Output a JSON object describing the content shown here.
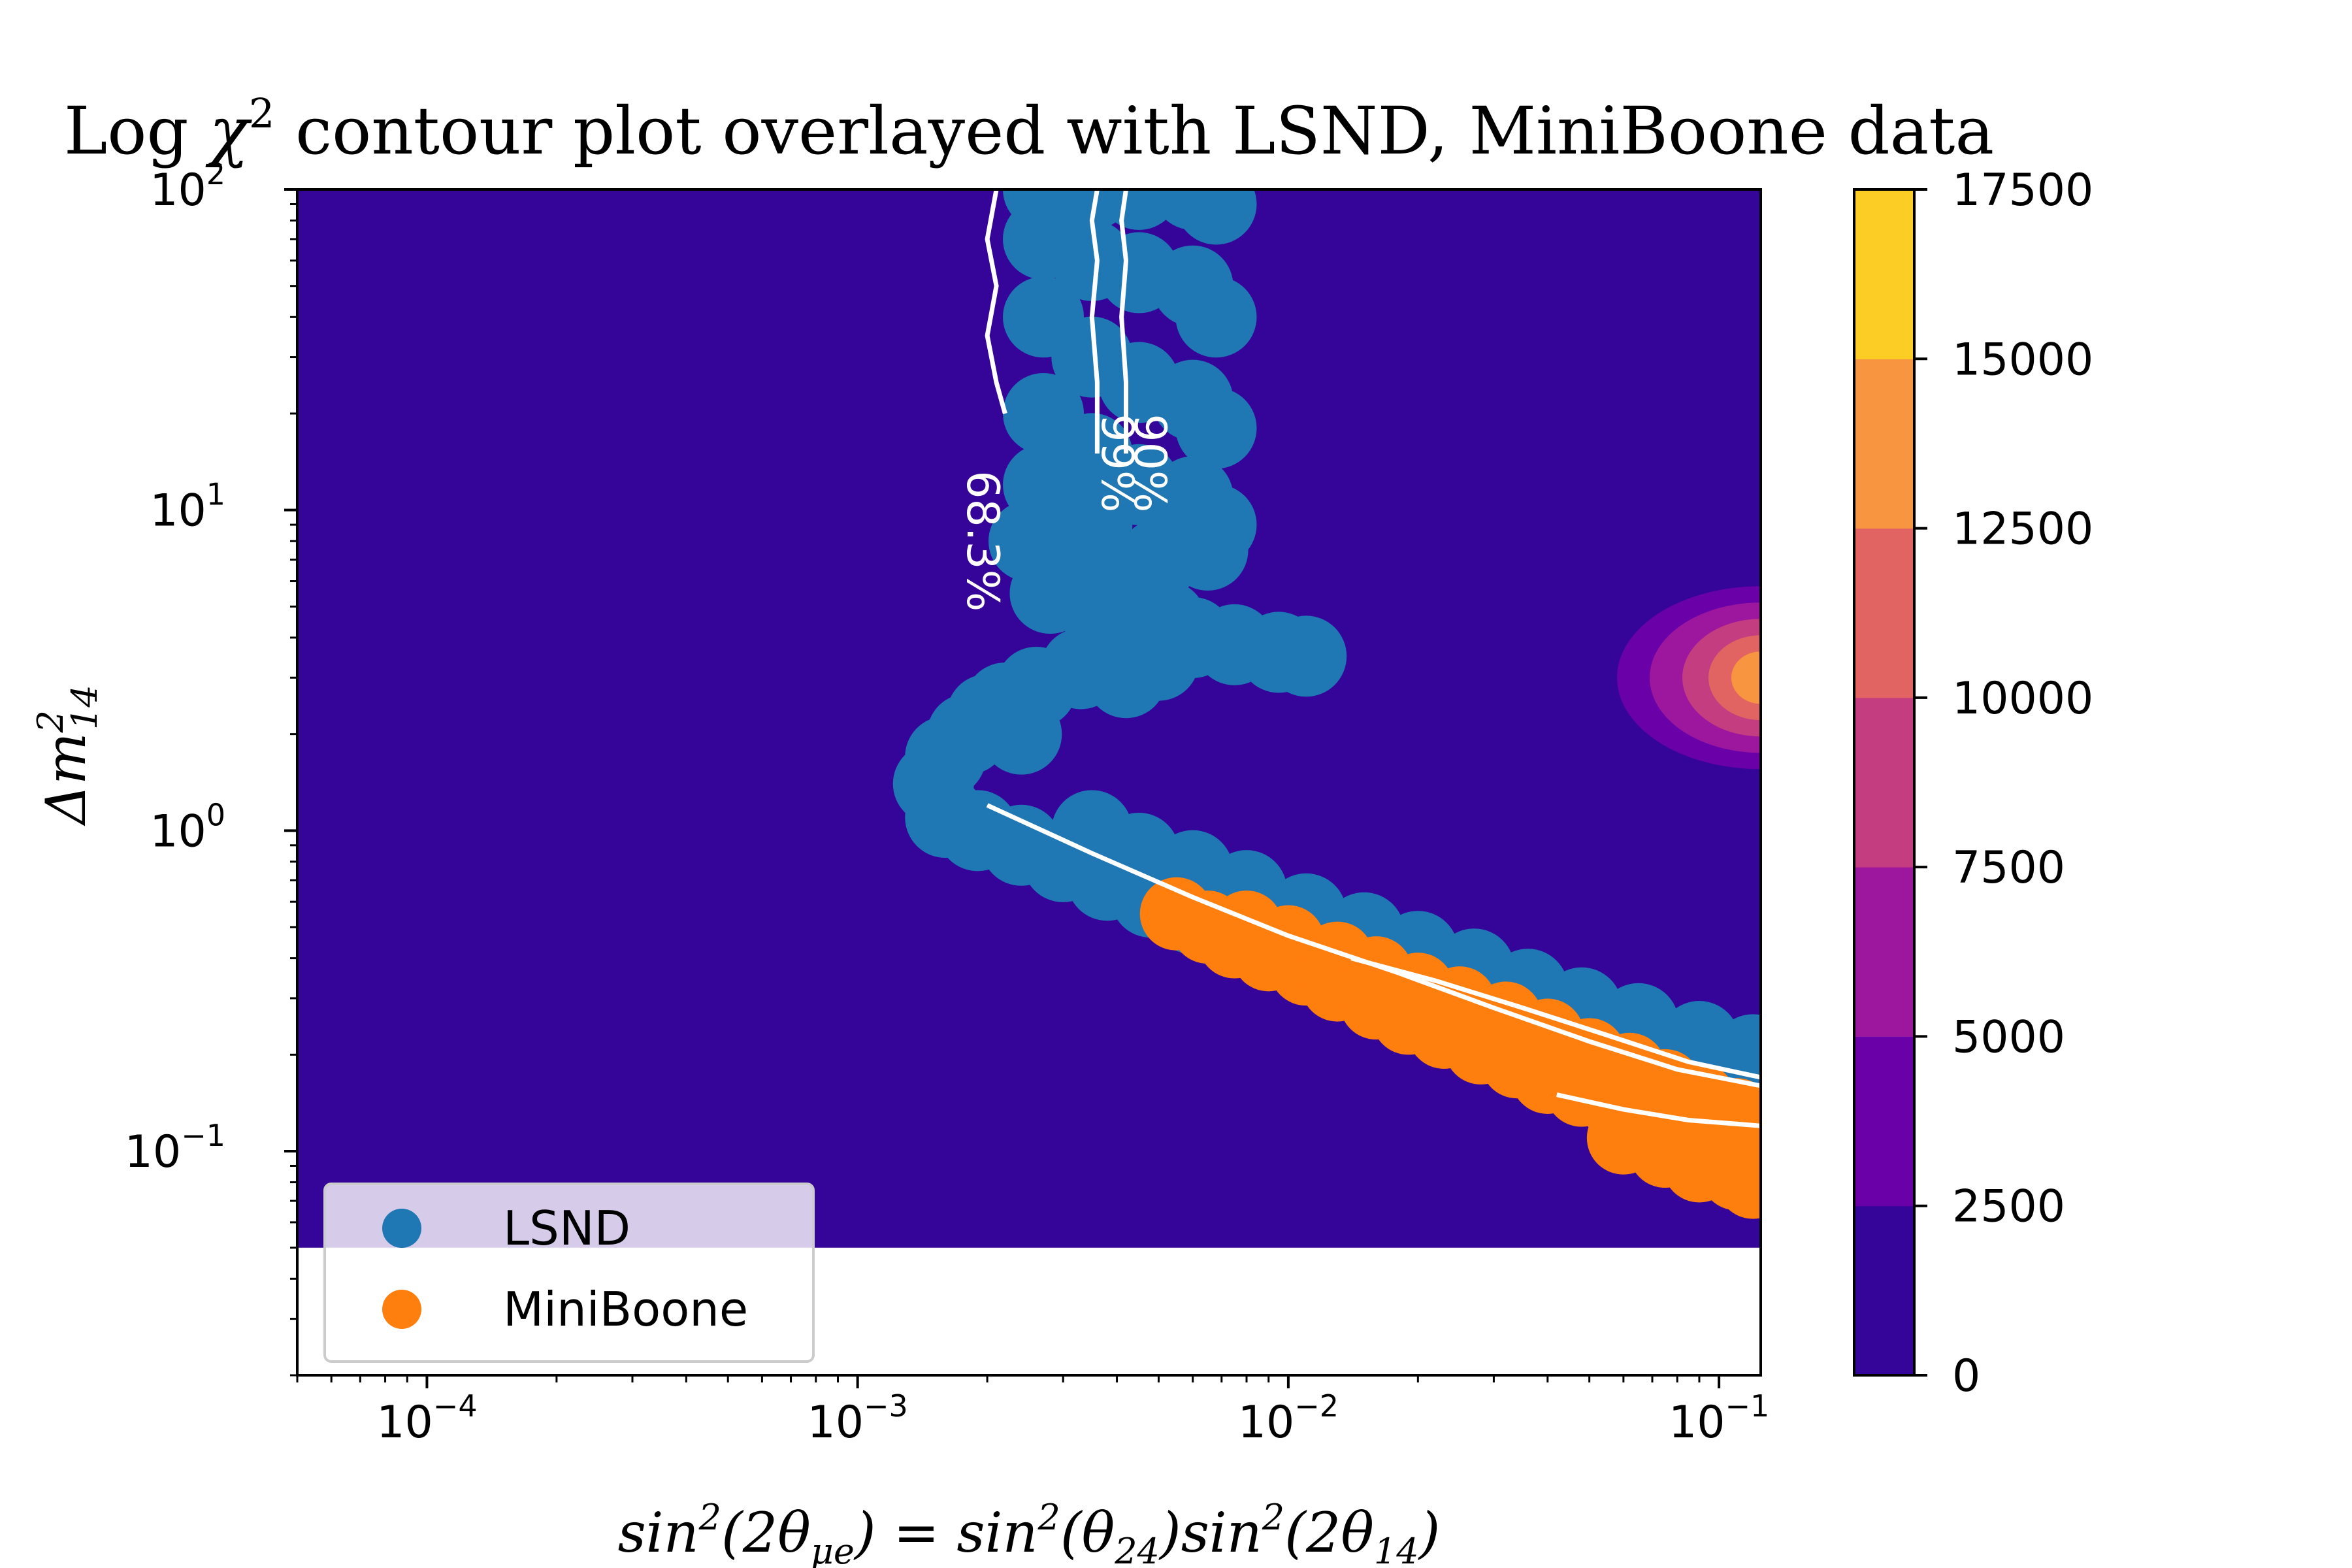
{
  "chart_data": {
    "type": "contour",
    "title": "Log χ² contour plot overlayed with LSND, MiniBoone data",
    "title_parts": {
      "pre": "Log ",
      "chi": "χ",
      "sup": "2",
      "post": " contour plot overlayed with LSND, MiniBoone data"
    },
    "xlabel": "sin²(2θμe) = sin²(θ24)sin²(2θ14)",
    "xlabel_parts": {
      "a": "sin",
      "a_sup": "2",
      "b": "(2θ",
      "b_sub": "μe",
      "c": ") = sin",
      "c_sup": "2",
      "d": "(θ",
      "d_sub": "24",
      "e": ")sin",
      "e_sup": "2",
      "f": "(2θ",
      "f_sub": "14",
      "g": ")"
    },
    "ylabel": "Δm²14",
    "ylabel_parts": {
      "a": "Δm",
      "sup": "2",
      "sub": "14"
    },
    "x_scale": "log",
    "y_scale": "log",
    "xlim": [
      5e-05,
      0.125
    ],
    "ylim": [
      0.02,
      100
    ],
    "x_ticks": [
      {
        "value": 0.0001,
        "base": "10",
        "exp": "−4"
      },
      {
        "value": 0.001,
        "base": "10",
        "exp": "−3"
      },
      {
        "value": 0.01,
        "base": "10",
        "exp": "−2"
      },
      {
        "value": 0.1,
        "base": "10",
        "exp": "−1"
      }
    ],
    "y_ticks": [
      {
        "value": 0.1,
        "base": "10",
        "exp": "−1"
      },
      {
        "value": 1,
        "base": "10",
        "exp": "0"
      },
      {
        "value": 10,
        "base": "10",
        "exp": "1"
      },
      {
        "value": 100,
        "base": "10",
        "exp": "2"
      }
    ],
    "filled_region_ylim_bottom": 0.05,
    "colorbar": {
      "levels": [
        0,
        2500,
        5000,
        7500,
        10000,
        12500,
        15000,
        17500
      ],
      "tick_labels": [
        "0",
        "2500",
        "5000",
        "7500",
        "10000",
        "12500",
        "15000",
        "17500"
      ],
      "colors": [
        "#350498",
        "#6a00a8",
        "#9c179e",
        "#c33d80",
        "#e16462",
        "#f89540",
        "#fccd25"
      ]
    },
    "hotspot": {
      "x": 0.125,
      "y": 3.0
    },
    "contour_lines": [
      {
        "label": "68.3%",
        "color": "#ffffff"
      },
      {
        "label": "90%",
        "color": "#ffffff"
      },
      {
        "label": "99%",
        "color": "#ffffff"
      }
    ],
    "contour_label_positions": [
      {
        "label": "68.3%",
        "x": 0.0018,
        "y": 8.0
      },
      {
        "label": "99%",
        "x": 0.0037,
        "y": 14.0
      },
      {
        "label": "90%",
        "x": 0.0044,
        "y": 14.0
      }
    ],
    "series": [
      {
        "name": "LSND",
        "type": "scatter",
        "color": "#1f77b4",
        "points": [
          [
            0.0027,
            100
          ],
          [
            0.0027,
            70
          ],
          [
            0.0027,
            40
          ],
          [
            0.0027,
            20
          ],
          [
            0.0027,
            12
          ],
          [
            0.0035,
            100
          ],
          [
            0.0035,
            60
          ],
          [
            0.0035,
            30
          ],
          [
            0.0035,
            15
          ],
          [
            0.0035,
            9
          ],
          [
            0.0045,
            100
          ],
          [
            0.0045,
            55
          ],
          [
            0.0045,
            25
          ],
          [
            0.0045,
            12
          ],
          [
            0.006,
            100
          ],
          [
            0.006,
            50
          ],
          [
            0.006,
            22
          ],
          [
            0.006,
            11
          ],
          [
            0.0068,
            90
          ],
          [
            0.0068,
            40
          ],
          [
            0.0068,
            18
          ],
          [
            0.0068,
            9
          ],
          [
            0.0025,
            8
          ],
          [
            0.0032,
            7
          ],
          [
            0.004,
            6.5
          ],
          [
            0.005,
            7
          ],
          [
            0.0065,
            7.5
          ],
          [
            0.0028,
            5.5
          ],
          [
            0.0036,
            5
          ],
          [
            0.0045,
            4.8
          ],
          [
            0.0052,
            4.5
          ],
          [
            0.006,
            4
          ],
          [
            0.0075,
            3.8
          ],
          [
            0.0095,
            3.6
          ],
          [
            0.011,
            3.5
          ],
          [
            0.0026,
            2.8
          ],
          [
            0.0033,
            3.2
          ],
          [
            0.0042,
            3
          ],
          [
            0.005,
            3.4
          ],
          [
            0.0022,
            2.5
          ],
          [
            0.0018,
            2
          ],
          [
            0.0016,
            1.7
          ],
          [
            0.0015,
            1.4
          ],
          [
            0.0016,
            1.1
          ],
          [
            0.002,
            2.3
          ],
          [
            0.0024,
            2.0
          ],
          [
            0.0019,
            1.0
          ],
          [
            0.0024,
            0.9
          ],
          [
            0.003,
            0.8
          ],
          [
            0.0038,
            0.7
          ],
          [
            0.0048,
            0.62
          ],
          [
            0.006,
            0.55
          ],
          [
            0.0075,
            0.5
          ],
          [
            0.0095,
            0.45
          ],
          [
            0.012,
            0.41
          ],
          [
            0.015,
            0.37
          ],
          [
            0.019,
            0.33
          ],
          [
            0.024,
            0.3
          ],
          [
            0.03,
            0.27
          ],
          [
            0.038,
            0.24
          ],
          [
            0.048,
            0.22
          ],
          [
            0.06,
            0.2
          ],
          [
            0.075,
            0.185
          ],
          [
            0.095,
            0.17
          ],
          [
            0.12,
            0.16
          ],
          [
            0.0035,
            1.0
          ],
          [
            0.0045,
            0.85
          ],
          [
            0.006,
            0.75
          ],
          [
            0.008,
            0.65
          ],
          [
            0.011,
            0.55
          ],
          [
            0.015,
            0.48
          ],
          [
            0.02,
            0.42
          ],
          [
            0.027,
            0.37
          ],
          [
            0.036,
            0.32
          ],
          [
            0.048,
            0.28
          ],
          [
            0.065,
            0.25
          ],
          [
            0.09,
            0.22
          ],
          [
            0.12,
            0.2
          ]
        ]
      },
      {
        "name": "MiniBoone",
        "type": "scatter",
        "color": "#ff7f0e",
        "points": [
          [
            0.0055,
            0.55
          ],
          [
            0.0065,
            0.5
          ],
          [
            0.0075,
            0.45
          ],
          [
            0.009,
            0.41
          ],
          [
            0.011,
            0.37
          ],
          [
            0.013,
            0.33
          ],
          [
            0.016,
            0.29
          ],
          [
            0.019,
            0.26
          ],
          [
            0.023,
            0.235
          ],
          [
            0.028,
            0.21
          ],
          [
            0.034,
            0.19
          ],
          [
            0.04,
            0.17
          ],
          [
            0.048,
            0.155
          ],
          [
            0.058,
            0.14
          ],
          [
            0.07,
            0.13
          ],
          [
            0.085,
            0.12
          ],
          [
            0.1,
            0.11
          ],
          [
            0.12,
            0.1
          ],
          [
            0.008,
            0.5
          ],
          [
            0.01,
            0.45
          ],
          [
            0.013,
            0.4
          ],
          [
            0.016,
            0.36
          ],
          [
            0.02,
            0.32
          ],
          [
            0.025,
            0.29
          ],
          [
            0.032,
            0.26
          ],
          [
            0.04,
            0.23
          ],
          [
            0.05,
            0.2
          ],
          [
            0.062,
            0.18
          ],
          [
            0.075,
            0.16
          ],
          [
            0.09,
            0.145
          ],
          [
            0.11,
            0.13
          ],
          [
            0.12,
            0.12
          ],
          [
            0.06,
            0.11
          ],
          [
            0.075,
            0.1
          ],
          [
            0.09,
            0.09
          ],
          [
            0.11,
            0.085
          ],
          [
            0.12,
            0.08
          ]
        ]
      }
    ],
    "legend": {
      "position": "lower left",
      "entries": [
        {
          "label": "LSND",
          "color": "#1f77b4"
        },
        {
          "label": "MiniBoone",
          "color": "#ff7f0e"
        }
      ]
    },
    "contour_paths": [
      [
        [
          0.0021,
          100
        ],
        [
          0.002,
          70
        ],
        [
          0.0021,
          50
        ],
        [
          0.002,
          35
        ],
        [
          0.0021,
          25
        ],
        [
          0.0022,
          20
        ]
      ],
      [
        [
          0.0036,
          100
        ],
        [
          0.0035,
          80
        ],
        [
          0.0036,
          60
        ],
        [
          0.0035,
          40
        ],
        [
          0.0036,
          25
        ],
        [
          0.0036,
          15
        ]
      ],
      [
        [
          0.0042,
          100
        ],
        [
          0.0041,
          80
        ],
        [
          0.0042,
          60
        ],
        [
          0.0041,
          40
        ],
        [
          0.0042,
          25
        ],
        [
          0.0042,
          15
        ]
      ],
      [
        [
          0.002,
          1.2
        ],
        [
          0.0035,
          0.85
        ],
        [
          0.006,
          0.62
        ],
        [
          0.01,
          0.47
        ],
        [
          0.018,
          0.36
        ],
        [
          0.03,
          0.28
        ],
        [
          0.05,
          0.22
        ],
        [
          0.08,
          0.18
        ],
        [
          0.125,
          0.16
        ]
      ],
      [
        [
          0.014,
          0.4
        ],
        [
          0.022,
          0.34
        ],
        [
          0.035,
          0.28
        ],
        [
          0.055,
          0.23
        ],
        [
          0.085,
          0.19
        ],
        [
          0.125,
          0.17
        ]
      ],
      [
        [
          0.042,
          0.15
        ],
        [
          0.06,
          0.135
        ],
        [
          0.085,
          0.125
        ],
        [
          0.125,
          0.12
        ]
      ]
    ]
  }
}
